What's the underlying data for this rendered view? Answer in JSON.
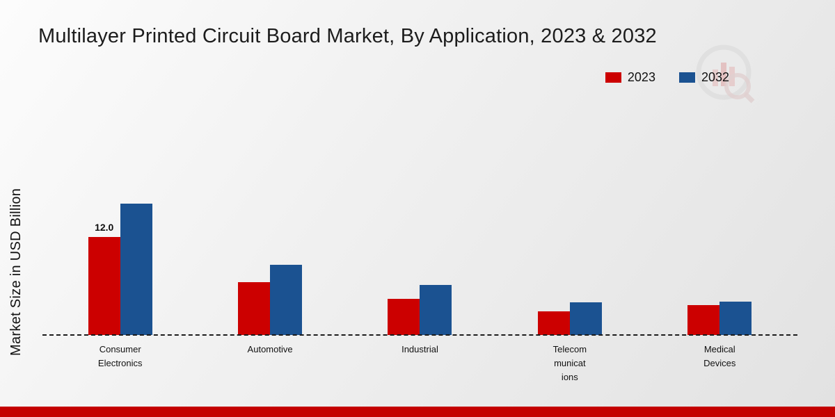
{
  "chart_data": {
    "type": "bar",
    "title": "Multilayer Printed Circuit Board Market, By Application, 2023 & 2032",
    "xlabel": "",
    "ylabel": "Market Size in USD Billion",
    "categories": [
      "Consumer Electronics",
      "Automotive",
      "Industrial",
      "Telecommunications",
      "Medical Devices"
    ],
    "category_label_lines": [
      [
        "Consumer",
        "Electronics"
      ],
      [
        "Automotive"
      ],
      [
        "Industrial"
      ],
      [
        "Telecom",
        "municat",
        "ions"
      ],
      [
        "Medical",
        "Devices"
      ]
    ],
    "series": [
      {
        "name": "2023",
        "color": "#cc0000",
        "values": [
          12.0,
          6.5,
          4.4,
          2.9,
          3.7
        ]
      },
      {
        "name": "2032",
        "color": "#1b5291",
        "values": [
          16.1,
          8.6,
          6.1,
          4.0,
          4.1
        ]
      }
    ],
    "value_labels": [
      [
        "12.0",
        "",
        "",
        "",
        ""
      ],
      [
        "",
        "",
        "",
        "",
        ""
      ]
    ],
    "ylim": [
      0,
      18
    ],
    "grid": false,
    "legend_position": "top-right",
    "baseline_style": "dashed"
  },
  "colors": {
    "accent_red": "#cc0000",
    "accent_blue": "#1b5291",
    "footer_bar": "#c40000",
    "baseline": "#1b1b1b"
  }
}
